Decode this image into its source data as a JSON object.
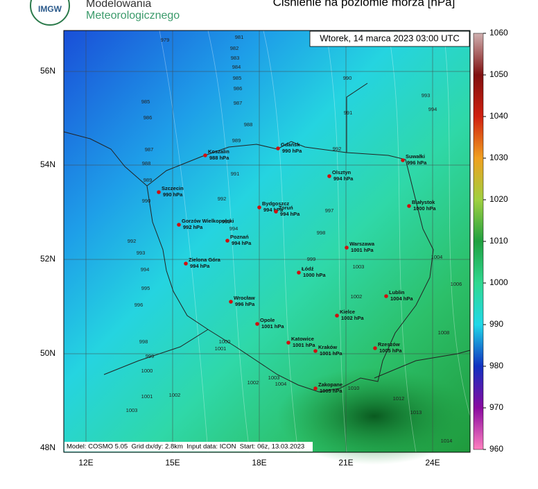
{
  "header": {
    "org_line1": "Modelowania",
    "org_line2": "Meteorologicznego",
    "logo": "IMGW",
    "title": "Ciśnienie na poziomie morza [hPa]"
  },
  "timestamp": "Wtorek, 14 marca 2023 03:00 UTC",
  "footer": "Model: COSMO 5.05  Grid dx/dy: 2.8km  Input data: ICON  Start: 06z, 13.03.2023",
  "lat_labels": [
    "56N",
    "54N",
    "52N",
    "50N",
    "48N"
  ],
  "lon_labels": [
    "12E",
    "15E",
    "18E",
    "21E",
    "24E"
  ],
  "colorbar": {
    "ticks": [
      960,
      970,
      980,
      990,
      1000,
      1010,
      1020,
      1030,
      1040,
      1050,
      1060
    ]
  },
  "cities": [
    {
      "name": "Koszalin",
      "pressure": "988 hPa"
    },
    {
      "name": "Gdańsk",
      "pressure": "990 hPa"
    },
    {
      "name": "Suwałki",
      "pressure": "996 hPa"
    },
    {
      "name": "Olsztyn",
      "pressure": "994 hPa"
    },
    {
      "name": "Szczecin",
      "pressure": "990 hPa"
    },
    {
      "name": "Białystok",
      "pressure": "1000 hPa"
    },
    {
      "name": "Bydgoszcz",
      "pressure": "994 hPa"
    },
    {
      "name": "Toruń",
      "pressure": "994 hPa"
    },
    {
      "name": "Gorzów Wielkopolski",
      "pressure": "992 hPa"
    },
    {
      "name": "Poznań",
      "pressure": "994 hPa"
    },
    {
      "name": "Warszawa",
      "pressure": "1001 hPa"
    },
    {
      "name": "Zielona Góra",
      "pressure": "994 hPa"
    },
    {
      "name": "Łódź",
      "pressure": "1000 hPa"
    },
    {
      "name": "Lublin",
      "pressure": "1004 hPa"
    },
    {
      "name": "Wrocław",
      "pressure": "996 hPa"
    },
    {
      "name": "Kielce",
      "pressure": "1002 hPa"
    },
    {
      "name": "Opole",
      "pressure": "1001 hPa"
    },
    {
      "name": "Katowice",
      "pressure": "1001 hPa"
    },
    {
      "name": "Kraków",
      "pressure": "1001 hPa"
    },
    {
      "name": "Rzeszów",
      "pressure": "1005 hPa"
    },
    {
      "name": "Zakopane",
      "pressure": "1005 hPa"
    }
  ],
  "isobar_labels": [
    "979",
    "981",
    "982",
    "983",
    "984",
    "985",
    "986",
    "987",
    "985",
    "986",
    "987",
    "988",
    "989",
    "990",
    "992",
    "993",
    "994",
    "995",
    "996",
    "998",
    "999",
    "1000",
    "1001",
    "1002",
    "1003",
    "989",
    "991",
    "992",
    "993",
    "994",
    "988",
    "990",
    "991",
    "992",
    "993",
    "994",
    "997",
    "998",
    "999",
    "1002",
    "1003",
    "1004",
    "1006",
    "1008",
    "1010",
    "1012",
    "1013",
    "1014",
    "1000",
    "1001",
    "1003",
    "1004",
    "1002"
  ]
}
